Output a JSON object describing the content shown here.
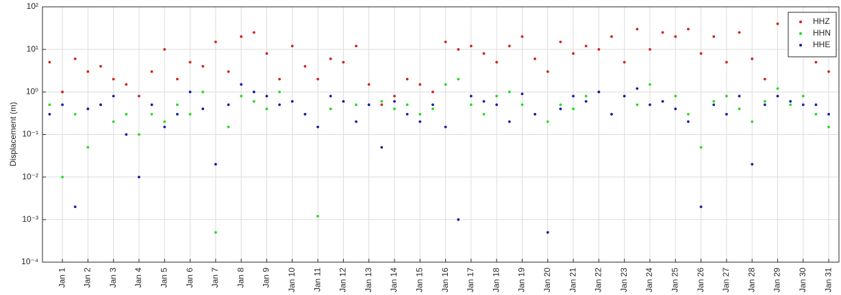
{
  "chart_data": {
    "type": "scatter",
    "y_label": "Displacement (m)",
    "log_y": true,
    "grid": true,
    "legend": "top-right",
    "xlim": [
      0.22,
      31.4
    ],
    "xticks": [
      {
        "value": 1,
        "label": "Jan 1"
      },
      {
        "value": 2,
        "label": "Jan 2"
      },
      {
        "value": 3,
        "label": "Jan 3"
      },
      {
        "value": 4,
        "label": "Jan 4"
      },
      {
        "value": 5,
        "label": "Jan 5"
      },
      {
        "value": 6,
        "label": "Jan 6"
      },
      {
        "value": 7,
        "label": "Jan 7"
      },
      {
        "value": 8,
        "label": "Jan 8"
      },
      {
        "value": 9,
        "label": "Jan 9"
      },
      {
        "value": 10,
        "label": "Jan 10"
      },
      {
        "value": 11,
        "label": "Jan 11"
      },
      {
        "value": 12,
        "label": "Jan 12"
      },
      {
        "value": 13,
        "label": "Jan 13"
      },
      {
        "value": 14,
        "label": "Jan 14"
      },
      {
        "value": 15,
        "label": "Jan 15"
      },
      {
        "value": 16,
        "label": "Jan 16"
      },
      {
        "value": 17,
        "label": "Jan 17"
      },
      {
        "value": 18,
        "label": "Jan 18"
      },
      {
        "value": 19,
        "label": "Jan 19"
      },
      {
        "value": 20,
        "label": "Jan 20"
      },
      {
        "value": 21,
        "label": "Jan 21"
      },
      {
        "value": 22,
        "label": "Jan 22"
      },
      {
        "value": 23,
        "label": "Jan 23"
      },
      {
        "value": 24,
        "label": "Jan 24"
      },
      {
        "value": 25,
        "label": "Jan 25"
      },
      {
        "value": 26,
        "label": "Jan 26"
      },
      {
        "value": 27,
        "label": "Jan 27"
      },
      {
        "value": 28,
        "label": "Jan 28"
      },
      {
        "value": 29,
        "label": "Jan 29"
      },
      {
        "value": 30,
        "label": "Jan 30"
      },
      {
        "value": 31,
        "label": "Jan 31"
      }
    ],
    "ylim": [
      0.0001,
      100
    ],
    "yticks": [
      {
        "value": 0.0001,
        "label": "10⁻⁴"
      },
      {
        "value": 0.001,
        "label": "10⁻³"
      },
      {
        "value": 0.01,
        "label": "10⁻²"
      },
      {
        "value": 0.1,
        "label": "10⁻¹"
      },
      {
        "value": 1,
        "label": "10⁰"
      },
      {
        "value": 10,
        "label": "10¹"
      },
      {
        "value": 100,
        "label": "10²"
      }
    ],
    "x": [
      0.5,
      1,
      1.5,
      2,
      2.5,
      3,
      3.5,
      4,
      4.5,
      5,
      5.5,
      6,
      6.5,
      7,
      7.5,
      8,
      8.5,
      9,
      9.5,
      10,
      10.5,
      11,
      11.5,
      12,
      12.5,
      13,
      13.5,
      14,
      14.5,
      15,
      15.5,
      16,
      16.5,
      17,
      17.5,
      18,
      18.5,
      19,
      19.5,
      20,
      20.5,
      21,
      21.5,
      22,
      22.5,
      23,
      23.5,
      24,
      24.5,
      25,
      25.5,
      26,
      26.5,
      27,
      27.5,
      28,
      28.5,
      29,
      29.5,
      30,
      30.5,
      31
    ],
    "series": [
      {
        "name": "HHZ",
        "color": "#d42020",
        "values": [
          5,
          1,
          6,
          3,
          4,
          2,
          1.5,
          0.8,
          3,
          10,
          2,
          5,
          4,
          15,
          3,
          20,
          25,
          8,
          2,
          12,
          4,
          2,
          6,
          5,
          12,
          1.5,
          0.5,
          0.8,
          2,
          1.5,
          1,
          15,
          10,
          12,
          8,
          5,
          12,
          20,
          6,
          3,
          15,
          8,
          12,
          10,
          20,
          5,
          30,
          10,
          25,
          20,
          30,
          8,
          20,
          5,
          25,
          6,
          2,
          40,
          8,
          10,
          5,
          3
        ]
      },
      {
        "name": "HHN",
        "color": "#22dd22",
        "values": [
          0.5,
          0.01,
          0.3,
          0.05,
          0.5,
          0.2,
          0.3,
          0.1,
          0.3,
          0.2,
          0.5,
          0.3,
          1,
          0.0005,
          0.15,
          0.8,
          0.6,
          0.4,
          1,
          0.6,
          0.3,
          0.0012,
          0.4,
          0.6,
          0.5,
          0.5,
          0.6,
          0.4,
          0.5,
          0.3,
          0.4,
          1.5,
          2,
          0.5,
          0.3,
          0.8,
          1,
          0.5,
          0.3,
          0.2,
          0.5,
          0.4,
          0.8,
          1,
          0.3,
          0.8,
          0.5,
          1.5,
          0.6,
          0.8,
          0.3,
          0.05,
          0.6,
          0.8,
          0.4,
          0.2,
          0.6,
          1.2,
          0.5,
          0.8,
          0.3,
          0.15
        ]
      },
      {
        "name": "HHE",
        "color": "#1a1aa8",
        "values": [
          0.3,
          0.5,
          0.002,
          0.4,
          0.5,
          0.8,
          0.1,
          0.01,
          0.5,
          0.15,
          0.3,
          1,
          0.4,
          0.02,
          0.5,
          1.5,
          1,
          0.8,
          0.5,
          0.6,
          0.3,
          0.15,
          0.8,
          0.6,
          0.2,
          0.5,
          0.05,
          0.6,
          0.3,
          0.2,
          0.5,
          0.15,
          0.001,
          0.8,
          0.6,
          0.5,
          0.2,
          0.9,
          0.3,
          0.0005,
          0.4,
          0.8,
          0.6,
          1,
          0.3,
          0.8,
          1.2,
          0.5,
          0.6,
          0.4,
          0.2,
          0.002,
          0.5,
          0.3,
          0.8,
          0.02,
          0.5,
          0.8,
          0.6,
          0.5,
          0.5,
          0.3
        ]
      }
    ]
  }
}
